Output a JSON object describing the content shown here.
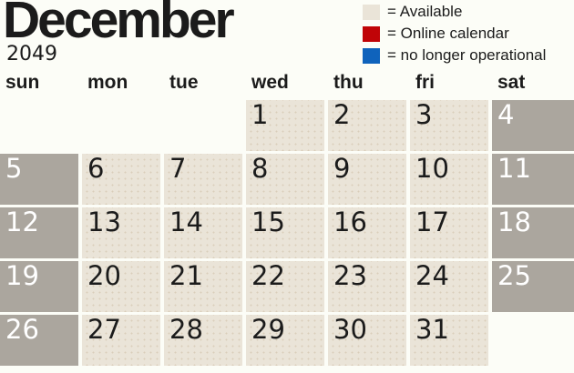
{
  "calendar": {
    "title": "December",
    "year": "2049",
    "day_headers": [
      "sun",
      "mon",
      "tue",
      "wed",
      "thu",
      "fri",
      "sat"
    ],
    "legend": [
      {
        "label": "= Available",
        "color": "#eae4d8"
      },
      {
        "label": "= Online calendar",
        "color": "#c00407"
      },
      {
        "label": "= no longer operational",
        "color": "#0f63bc"
      }
    ],
    "colors": {
      "available_cell": "#eae4d8",
      "weekend_cell": "#aba69e",
      "legend_red": "#c00407",
      "legend_blue": "#0f63bc"
    },
    "weeks": [
      [
        null,
        null,
        null,
        "1",
        "2",
        "3",
        "4"
      ],
      [
        "5",
        "6",
        "7",
        "8",
        "9",
        "10",
        "11"
      ],
      [
        "12",
        "13",
        "14",
        "15",
        "16",
        "17",
        "18"
      ],
      [
        "19",
        "20",
        "21",
        "22",
        "23",
        "24",
        "25"
      ],
      [
        "26",
        "27",
        "28",
        "29",
        "30",
        "31",
        null
      ]
    ]
  }
}
